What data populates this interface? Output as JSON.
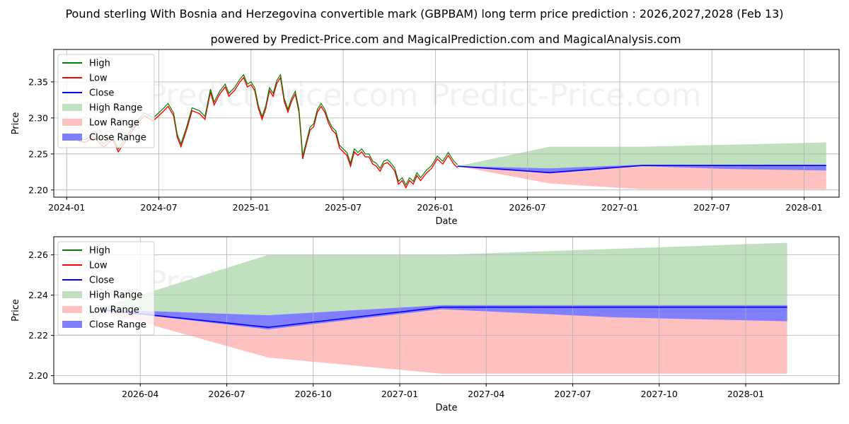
{
  "title": "Pound sterling With Bosnia and Herzegovina convertible mark (GBPBAM) long term price prediction : 2026,2027,2028 (Feb 13)",
  "subtitle": "powered by Predict-Price.com and MagicalPrediction.com and MagicalAnalysis.com",
  "watermark": "Predict-Price.com",
  "colors": {
    "high": "#008000",
    "low": "#ff0000",
    "close": "#0000ff",
    "high_range": "#c0e0c0",
    "low_range": "#ffc0c0",
    "close_range": "#7f7fff"
  },
  "legend": [
    "High",
    "Low",
    "Close",
    "High Range",
    "Low Range",
    "Close Range"
  ],
  "chart_data": [
    {
      "type": "line",
      "name": "full-history-and-forecast",
      "xlabel": "Date",
      "ylabel": "Price",
      "xlim": [
        2023.93,
        2028.19
      ],
      "ylim": [
        2.19,
        2.395
      ],
      "xticks": [
        {
          "v": 2024.0,
          "label": "2024-01"
        },
        {
          "v": 2024.5,
          "label": "2024-07"
        },
        {
          "v": 2025.0,
          "label": "2025-01"
        },
        {
          "v": 2025.5,
          "label": "2025-07"
        },
        {
          "v": 2026.0,
          "label": "2026-01"
        },
        {
          "v": 2026.5,
          "label": "2026-07"
        },
        {
          "v": 2027.0,
          "label": "2027-01"
        },
        {
          "v": 2027.5,
          "label": "2027-07"
        },
        {
          "v": 2028.0,
          "label": "2028-01"
        }
      ],
      "yticks": [
        {
          "v": 2.2,
          "label": "2.20"
        },
        {
          "v": 2.25,
          "label": "2.25"
        },
        {
          "v": 2.3,
          "label": "2.30"
        },
        {
          "v": 2.35,
          "label": "2.35"
        }
      ],
      "history_close": [
        [
          2024.06,
          2.27
        ],
        [
          2024.1,
          2.268
        ],
        [
          2024.15,
          2.275
        ],
        [
          2024.2,
          2.262
        ],
        [
          2024.25,
          2.272
        ],
        [
          2024.28,
          2.255
        ],
        [
          2024.32,
          2.27
        ],
        [
          2024.37,
          2.29
        ],
        [
          2024.42,
          2.305
        ],
        [
          2024.47,
          2.298
        ],
        [
          2024.52,
          2.31
        ],
        [
          2024.55,
          2.318
        ],
        [
          2024.58,
          2.305
        ],
        [
          2024.6,
          2.275
        ],
        [
          2024.62,
          2.262
        ],
        [
          2024.65,
          2.285
        ],
        [
          2024.68,
          2.312
        ],
        [
          2024.72,
          2.308
        ],
        [
          2024.75,
          2.3
        ],
        [
          2024.78,
          2.338
        ],
        [
          2024.8,
          2.32
        ],
        [
          2024.83,
          2.335
        ],
        [
          2024.86,
          2.345
        ],
        [
          2024.88,
          2.332
        ],
        [
          2024.91,
          2.34
        ],
        [
          2024.94,
          2.352
        ],
        [
          2024.96,
          2.358
        ],
        [
          2024.98,
          2.345
        ],
        [
          2025.0,
          2.348
        ],
        [
          2025.02,
          2.34
        ],
        [
          2025.04,
          2.315
        ],
        [
          2025.06,
          2.3
        ],
        [
          2025.08,
          2.315
        ],
        [
          2025.1,
          2.34
        ],
        [
          2025.12,
          2.332
        ],
        [
          2025.14,
          2.35
        ],
        [
          2025.16,
          2.358
        ],
        [
          2025.18,
          2.325
        ],
        [
          2025.2,
          2.31
        ],
        [
          2025.22,
          2.325
        ],
        [
          2025.24,
          2.335
        ],
        [
          2025.26,
          2.31
        ],
        [
          2025.27,
          2.28
        ],
        [
          2025.28,
          2.245
        ],
        [
          2025.3,
          2.265
        ],
        [
          2025.32,
          2.285
        ],
        [
          2025.34,
          2.29
        ],
        [
          2025.36,
          2.31
        ],
        [
          2025.38,
          2.318
        ],
        [
          2025.4,
          2.31
        ],
        [
          2025.42,
          2.295
        ],
        [
          2025.44,
          2.285
        ],
        [
          2025.46,
          2.28
        ],
        [
          2025.48,
          2.26
        ],
        [
          2025.5,
          2.255
        ],
        [
          2025.52,
          2.25
        ],
        [
          2025.54,
          2.235
        ],
        [
          2025.56,
          2.255
        ],
        [
          2025.58,
          2.25
        ],
        [
          2025.6,
          2.255
        ],
        [
          2025.62,
          2.248
        ],
        [
          2025.64,
          2.248
        ],
        [
          2025.66,
          2.238
        ],
        [
          2025.68,
          2.235
        ],
        [
          2025.7,
          2.228
        ],
        [
          2025.72,
          2.238
        ],
        [
          2025.74,
          2.24
        ],
        [
          2025.76,
          2.235
        ],
        [
          2025.78,
          2.228
        ],
        [
          2025.8,
          2.21
        ],
        [
          2025.82,
          2.215
        ],
        [
          2025.84,
          2.205
        ],
        [
          2025.86,
          2.215
        ],
        [
          2025.88,
          2.21
        ],
        [
          2025.9,
          2.222
        ],
        [
          2025.92,
          2.215
        ],
        [
          2025.95,
          2.225
        ],
        [
          2025.98,
          2.232
        ],
        [
          2026.01,
          2.245
        ],
        [
          2026.04,
          2.238
        ],
        [
          2026.07,
          2.25
        ],
        [
          2026.1,
          2.238
        ],
        [
          2026.12,
          2.233
        ]
      ],
      "forecast": {
        "x": [
          2026.12,
          2026.62,
          2027.12,
          2027.62,
          2028.12
        ],
        "close": [
          2.233,
          2.224,
          2.234,
          2.234,
          2.234
        ],
        "high_range_upper": [
          2.233,
          2.26,
          2.26,
          2.263,
          2.266
        ],
        "low_range_lower": [
          2.233,
          2.209,
          2.201,
          2.201,
          2.201
        ],
        "close_range_upper": [
          2.233,
          2.23,
          2.235,
          2.235,
          2.235
        ],
        "close_range_lower": [
          2.233,
          2.223,
          2.233,
          2.229,
          2.227
        ]
      }
    },
    {
      "type": "line",
      "name": "forecast-zoom",
      "xlabel": "Date",
      "ylabel": "Price",
      "xlim": [
        2026.0,
        2028.27
      ],
      "ylim": [
        2.196,
        2.269
      ],
      "xticks": [
        {
          "v": 2026.25,
          "label": "2026-04"
        },
        {
          "v": 2026.5,
          "label": "2026-07"
        },
        {
          "v": 2026.75,
          "label": "2026-10"
        },
        {
          "v": 2027.0,
          "label": "2027-01"
        },
        {
          "v": 2027.25,
          "label": "2027-04"
        },
        {
          "v": 2027.5,
          "label": "2027-07"
        },
        {
          "v": 2027.75,
          "label": "2027-10"
        },
        {
          "v": 2028.0,
          "label": "2028-01"
        }
      ],
      "yticks": [
        {
          "v": 2.2,
          "label": "2.20"
        },
        {
          "v": 2.22,
          "label": "2.22"
        },
        {
          "v": 2.24,
          "label": "2.24"
        },
        {
          "v": 2.26,
          "label": "2.26"
        }
      ],
      "forecast": {
        "x": [
          2026.12,
          2026.62,
          2027.12,
          2027.62,
          2028.12
        ],
        "close": [
          2.233,
          2.224,
          2.234,
          2.234,
          2.234
        ],
        "high_range_upper": [
          2.233,
          2.26,
          2.26,
          2.263,
          2.266
        ],
        "low_range_lower": [
          2.233,
          2.209,
          2.201,
          2.201,
          2.201
        ],
        "close_range_upper": [
          2.233,
          2.23,
          2.235,
          2.235,
          2.235
        ],
        "close_range_lower": [
          2.233,
          2.223,
          2.233,
          2.229,
          2.227
        ]
      }
    }
  ]
}
